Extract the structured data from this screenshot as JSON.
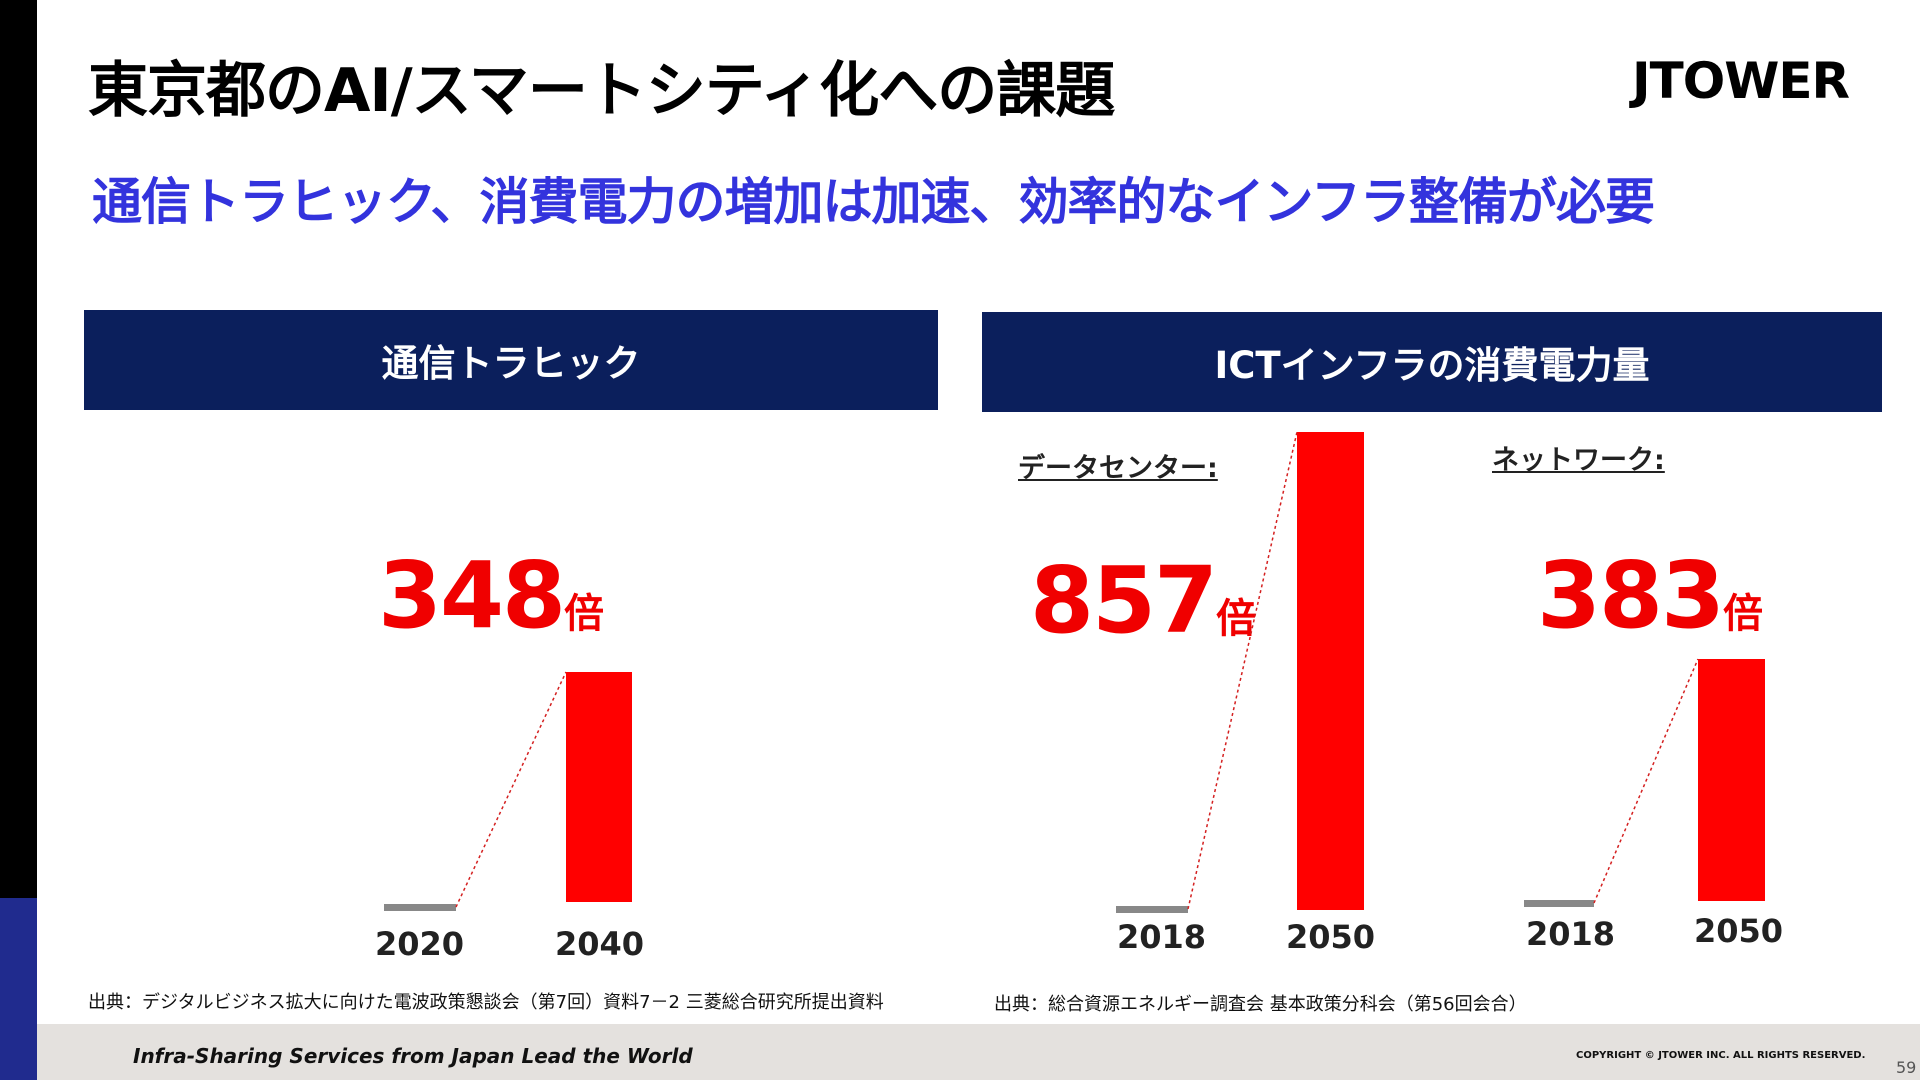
{
  "title": "東京都のAI/スマートシティ化への課題",
  "logo": "JTOWER",
  "subtitle": "通信トラヒック、消費電力の増加は加速、効率的なインフラ整備が必要",
  "left_panel": {
    "header": "通信トラヒック",
    "source": "出典：デジタルビジネス拡大に向けた電波政策懇談会（第7回）資料7－2 三菱総合研究所提出資料"
  },
  "right_panel": {
    "header": "ICTインフラの消費電力量",
    "source": "出典：総合資源エネルギー調査会 基本政策分科会（第56回会合）"
  },
  "chart_data": [
    {
      "type": "bar",
      "title": "通信トラヒック",
      "categories": [
        "2020",
        "2040"
      ],
      "values": [
        1,
        348
      ],
      "growth_label": "348",
      "unit": "倍",
      "colors": {
        "base": "#888888",
        "bar": "#ff0000"
      }
    },
    {
      "type": "bar",
      "title": "データセンター:",
      "categories": [
        "2018",
        "2050"
      ],
      "values": [
        1,
        857
      ],
      "growth_label": "857",
      "unit": "倍",
      "colors": {
        "base": "#888888",
        "bar": "#ff0000"
      }
    },
    {
      "type": "bar",
      "title": "ネットワーク:",
      "categories": [
        "2018",
        "2050"
      ],
      "values": [
        1,
        383
      ],
      "growth_label": "383",
      "unit": "倍",
      "colors": {
        "base": "#888888",
        "bar": "#ff0000"
      }
    }
  ],
  "footer": {
    "tagline": "Infra-Sharing Services from Japan Lead the World",
    "copyright": "COPYRIGHT © JTOWER INC. ALL RIGHTS RESERVED.",
    "page_number": "59"
  }
}
